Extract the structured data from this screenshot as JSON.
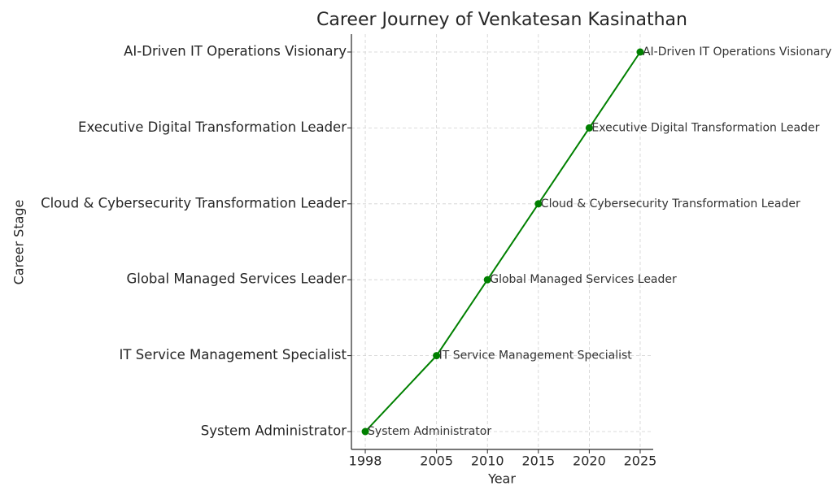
{
  "chart_data": {
    "type": "line",
    "title": "Career Journey of Venkatesan Kasinathan",
    "x_label": "Year",
    "y_label": "Career Stage",
    "x": [
      1998,
      2005,
      2010,
      2015,
      2020,
      2025
    ],
    "values": [
      "System Administrator",
      "IT Service Management Specialist",
      "Global Managed Services Leader",
      "Cloud & Cybersecurity Transformation Leader",
      "Executive Digital Transformation Leader",
      "AI-Driven IT Operations Visionary"
    ],
    "y_categories": [
      "System Administrator",
      "IT Service Management Specialist",
      "Global Managed Services Leader",
      "Cloud & Cybersecurity Transformation Leader",
      "Executive Digital Transformation Leader",
      "AI-Driven IT Operations Visionary"
    ],
    "xlim": [
      1996.64,
      2026.28
    ],
    "xticks": [
      1998,
      2005,
      2010,
      2015,
      2020,
      2025
    ],
    "color": "#008000",
    "grid": true
  }
}
